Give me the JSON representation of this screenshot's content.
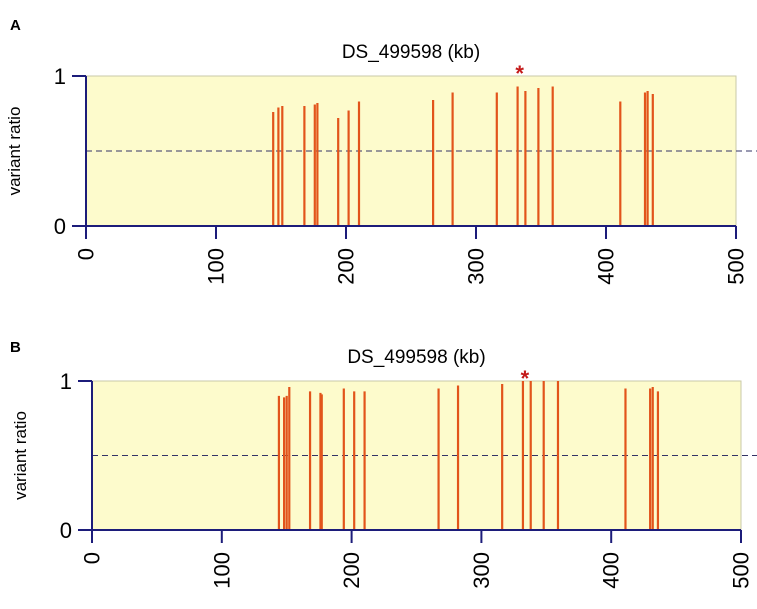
{
  "colors": {
    "plot_bg": "#fdfbcc",
    "axis": "#1c1c7a",
    "bar": "#e2541b",
    "dashed": "#333366",
    "star": "#c41a1a"
  },
  "chart_data": [
    {
      "panel": "A",
      "type": "bar",
      "title": "DS_499598 (kb)",
      "ylabel": "variant ratio",
      "xlim": [
        0,
        500
      ],
      "ylim": [
        0,
        1
      ],
      "xticks": [
        "0",
        "100",
        "200",
        "300",
        "400",
        "500"
      ],
      "yticks": [
        "0",
        "1"
      ],
      "threshold": 0.5,
      "annotation": "*",
      "annotation_x": 332,
      "x": [
        144,
        148,
        151,
        168,
        176,
        178,
        194,
        202,
        210,
        267,
        282,
        316,
        332,
        338,
        348,
        359,
        411,
        430,
        432,
        436
      ],
      "values": [
        0.76,
        0.79,
        0.8,
        0.8,
        0.81,
        0.82,
        0.72,
        0.77,
        0.83,
        0.84,
        0.89,
        0.89,
        0.93,
        0.9,
        0.92,
        0.93,
        0.83,
        0.89,
        0.9,
        0.88
      ]
    },
    {
      "panel": "B",
      "type": "bar",
      "title": "DS_499598 (kb)",
      "ylabel": "variant ratio",
      "xlim": [
        0,
        500
      ],
      "ylim": [
        0,
        1
      ],
      "xticks": [
        "0",
        "100",
        "200",
        "300",
        "400",
        "500"
      ],
      "yticks": [
        "0",
        "1"
      ],
      "threshold": 0.5,
      "annotation": "*",
      "annotation_x": 332,
      "x": [
        144,
        148,
        150,
        152,
        168,
        176,
        177,
        194,
        202,
        210,
        267,
        282,
        316,
        332,
        338,
        348,
        359,
        411,
        430,
        432,
        436
      ],
      "values": [
        0.9,
        0.89,
        0.9,
        0.96,
        0.93,
        0.92,
        0.91,
        0.95,
        0.93,
        0.93,
        0.95,
        0.97,
        0.98,
        1.0,
        1.0,
        1.0,
        1.0,
        0.95,
        0.95,
        0.96,
        0.93
      ]
    }
  ]
}
